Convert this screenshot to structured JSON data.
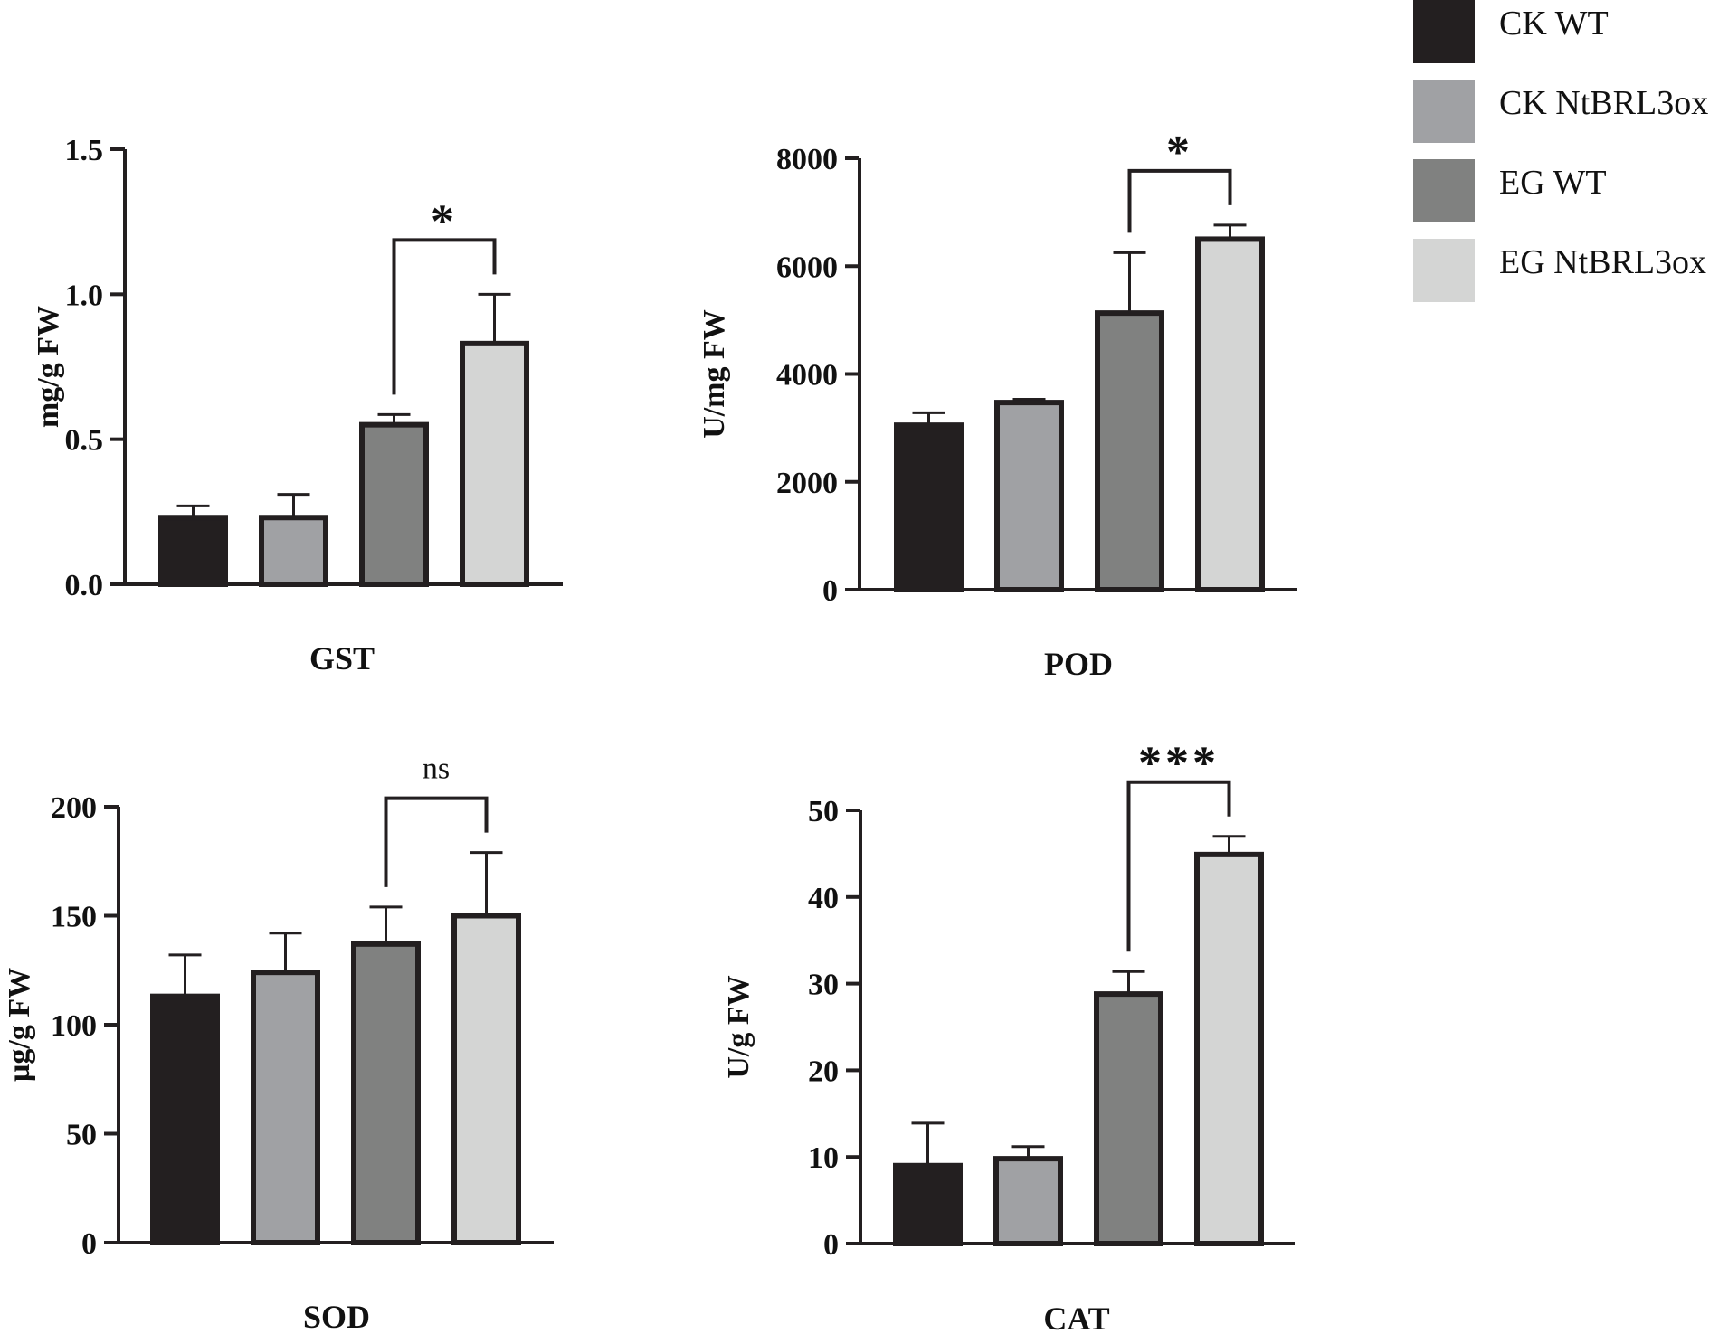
{
  "chart_data": [
    {
      "type": "bar",
      "title": "GST",
      "ylabel": "mg/g FW",
      "xlabel": "",
      "categories": [
        "CK WT",
        "CK NtBRL3ox",
        "EG WT",
        "EG NtBRL3ox"
      ],
      "values": [
        0.23,
        0.23,
        0.55,
        0.83
      ],
      "errors": [
        0.04,
        0.08,
        0.035,
        0.17
      ],
      "ylim": [
        0,
        1.5
      ],
      "yticks": [
        0,
        0.5,
        1.0,
        1.5
      ],
      "ytick_labels": [
        "0.0",
        "0.5",
        "1.0",
        "1.5"
      ],
      "significance": {
        "between": [
          2,
          3
        ],
        "label": "*"
      }
    },
    {
      "type": "bar",
      "title": "POD",
      "ylabel": "U/mg FW",
      "xlabel": "",
      "categories": [
        "CK WT",
        "CK NtBRL3ox",
        "EG WT",
        "EG NtBRL3ox"
      ],
      "values": [
        3050,
        3470,
        5130,
        6500
      ],
      "errors": [
        230,
        60,
        1120,
        260
      ],
      "ylim": [
        0,
        8000
      ],
      "yticks": [
        0,
        2000,
        4000,
        6000,
        8000
      ],
      "ytick_labels": [
        "0",
        "2000",
        "4000",
        "6000",
        "8000"
      ],
      "significance": {
        "between": [
          2,
          3
        ],
        "label": "*"
      }
    },
    {
      "type": "bar",
      "title": "SOD",
      "ylabel": "µg/g FW",
      "xlabel": "",
      "categories": [
        "CK WT",
        "CK NtBRL3ox",
        "EG WT",
        "EG NtBRL3ox"
      ],
      "values": [
        113,
        124,
        137,
        150
      ],
      "errors": [
        19,
        18,
        17,
        29
      ],
      "ylim": [
        0,
        200
      ],
      "yticks": [
        0,
        50,
        100,
        150,
        200
      ],
      "ytick_labels": [
        "0",
        "50",
        "100",
        "150",
        "200"
      ],
      "significance": {
        "between": [
          2,
          3
        ],
        "label": "ns"
      }
    },
    {
      "type": "bar",
      "title": "CAT",
      "ylabel": "U/g FW",
      "xlabel": "",
      "categories": [
        "CK WT",
        "CK NtBRL3ox",
        "EG WT",
        "EG NtBRL3ox"
      ],
      "values": [
        9,
        9.8,
        28.8,
        44.9
      ],
      "errors": [
        4.9,
        1.4,
        2.6,
        2.1
      ],
      "ylim": [
        0,
        50
      ],
      "yticks": [
        0,
        10,
        20,
        30,
        40,
        50
      ],
      "ytick_labels": [
        "0",
        "10",
        "20",
        "30",
        "40",
        "50"
      ],
      "significance": {
        "between": [
          2,
          3
        ],
        "label": "***"
      }
    }
  ],
  "legend": {
    "position": "top-right",
    "entries": [
      {
        "label": "CK WT",
        "color": "#231f20"
      },
      {
        "label": "CK NtBRL3ox",
        "color": "#a0a1a4"
      },
      {
        "label": "EG WT",
        "color": "#808180"
      },
      {
        "label": "EG NtBRL3ox",
        "color": "#d4d5d4"
      }
    ]
  },
  "colors": {
    "bar_outline": "#231f20",
    "axis": "#231f20"
  }
}
